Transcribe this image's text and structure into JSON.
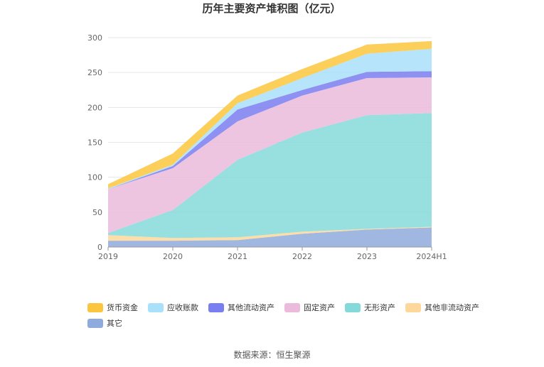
{
  "chart_data": {
    "type": "area",
    "stacked": true,
    "title": "历年主要资产堆积图（亿元）",
    "categories": [
      "2019",
      "2020",
      "2021",
      "2022",
      "2023",
      "2024H1"
    ],
    "ylim": [
      0,
      300
    ],
    "yticks": [
      0,
      50,
      100,
      150,
      200,
      250,
      300
    ],
    "grid": true,
    "legend_position": "bottom",
    "series": [
      {
        "name": "其它",
        "color": "#8faadc",
        "values": [
          9,
          9,
          10,
          19,
          25,
          28
        ]
      },
      {
        "name": "其他非流动资产",
        "color": "#fdd89a",
        "values": [
          8,
          4,
          4,
          3,
          1,
          1
        ]
      },
      {
        "name": "无形资产",
        "color": "#86d9d9",
        "values": [
          3,
          40,
          111,
          142,
          163,
          163
        ]
      },
      {
        "name": "固定资产",
        "color": "#ebbbdc",
        "values": [
          63,
          60,
          55,
          53,
          53,
          51
        ]
      },
      {
        "name": "其他流动资产",
        "color": "#7b7ef0",
        "values": [
          0,
          3,
          17,
          8,
          9,
          9
        ]
      },
      {
        "name": "应收账款",
        "color": "#a9e0fa",
        "values": [
          1,
          2,
          9,
          17,
          26,
          32
        ]
      },
      {
        "name": "货币资金",
        "color": "#fbc53d",
        "values": [
          6,
          16,
          11,
          13,
          13,
          11
        ]
      }
    ],
    "legend_order": [
      "货币资金",
      "应收账款",
      "其他流动资产",
      "固定资产",
      "无形资产",
      "其他非流动资产",
      "其它"
    ]
  },
  "source": "数据来源：恒生聚源"
}
